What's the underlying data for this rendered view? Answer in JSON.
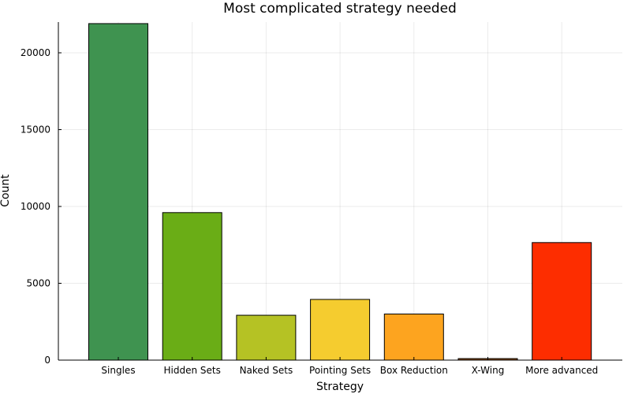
{
  "chart_data": {
    "type": "bar",
    "title": "Most complicated strategy needed",
    "xlabel": "Strategy",
    "ylabel": "Count",
    "categories": [
      "Singles",
      "Hidden Sets",
      "Naked Sets",
      "Pointing Sets",
      "Box Reduction",
      "X-Wing",
      "More advanced"
    ],
    "values": [
      21900,
      9600,
      2920,
      3950,
      3000,
      100,
      7650
    ],
    "colors": [
      "#3f9350",
      "#6aad16",
      "#b5c224",
      "#f5cc2f",
      "#fda41f",
      "#8b4a0a",
      "#fd2d00"
    ],
    "ylim": [
      0,
      22000
    ],
    "yticks": [
      0,
      5000,
      10000,
      15000,
      20000
    ],
    "grid": true,
    "legend": "none"
  }
}
